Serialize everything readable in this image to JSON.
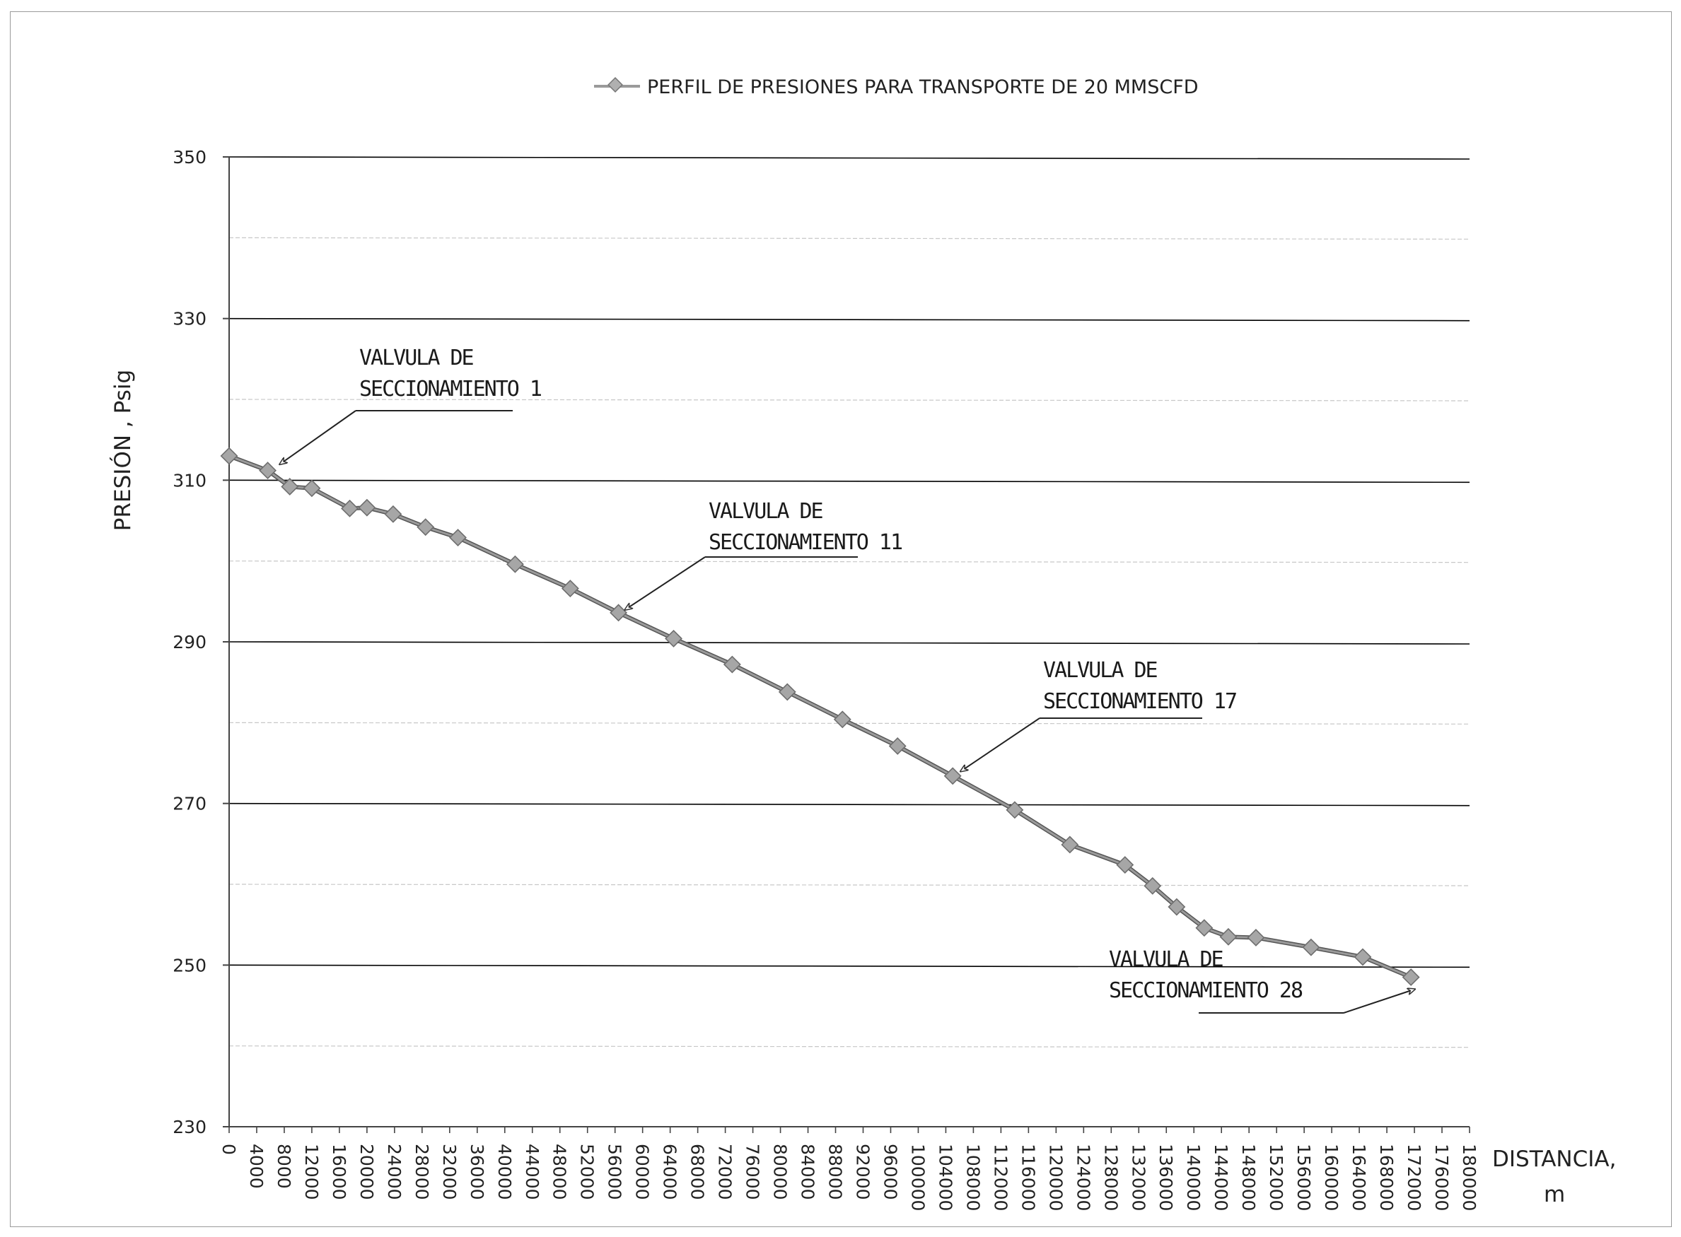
{
  "chart_data": {
    "type": "line",
    "legend": {
      "label": "PERFIL DE PRESIONES PARA TRANSPORTE DE 20 MMSCFD",
      "placement": "top-center"
    },
    "xlabel_line1": "DISTANCIA,",
    "xlabel_line2": "m",
    "ylabel": "PRESIÓN , Psig",
    "xlim": [
      0,
      180000
    ],
    "ylim": [
      230,
      350
    ],
    "x_ticks": [
      "0",
      "4000",
      "8000",
      "12000",
      "16000",
      "20000",
      "24000",
      "28000",
      "32000",
      "36000",
      "40000",
      "44000",
      "48000",
      "52000",
      "56000",
      "60000",
      "64000",
      "68000",
      "72000",
      "76000",
      "80000",
      "84000",
      "88000",
      "92000",
      "96000",
      "100000",
      "104000",
      "108000",
      "112000",
      "116000",
      "120000",
      "124000",
      "128000",
      "132000",
      "136000",
      "140000",
      "144000",
      "148000",
      "152000",
      "156000",
      "160000",
      "164000",
      "168000",
      "172000",
      "176000",
      "180000"
    ],
    "y_ticks": [
      "230",
      "250",
      "270",
      "290",
      "310",
      "330",
      "350"
    ],
    "grid": true,
    "colors": {
      "series": "#9a9a9a",
      "marker": "#a6a6a6",
      "grid": "#000000"
    },
    "series": [
      {
        "name": "PERFIL DE PRESIONES PARA TRANSPORTE DE 20 MMSCFD",
        "x": [
          0,
          5600,
          8800,
          12000,
          17500,
          20000,
          23800,
          28500,
          33200,
          41500,
          49500,
          56500,
          64500,
          73000,
          81000,
          89000,
          97000,
          105000,
          114000,
          122000,
          130000,
          134000,
          137500,
          141500,
          145000,
          149000,
          157000,
          164500,
          171500
        ],
        "y": [
          313,
          311.2,
          309.2,
          309,
          306.5,
          306.6,
          305.8,
          304.2,
          302.9,
          299.6,
          296.6,
          293.6,
          290.4,
          287.2,
          283.8,
          280.4,
          277.1,
          273.4,
          269.2,
          264.9,
          262.4,
          259.8,
          257.2,
          254.6,
          253.5,
          253.4,
          252.2,
          251,
          248.5
        ]
      }
    ],
    "annotations": [
      {
        "line1": "VALVULA DE",
        "line2": "SECCIONAMIENTO 1",
        "points_to_x": 7400,
        "points_to_y": 312
      },
      {
        "line1": "VALVULA DE",
        "line2": "SECCIONAMIENTO 11",
        "points_to_x": 57500,
        "points_to_y": 294
      },
      {
        "line1": "VALVULA DE",
        "line2": "SECCIONAMIENTO 17",
        "points_to_x": 106200,
        "points_to_y": 274
      },
      {
        "line1": "VALVULA DE",
        "line2": "SECCIONAMIENTO 28",
        "points_to_x": 172000,
        "points_to_y": 247
      }
    ]
  }
}
